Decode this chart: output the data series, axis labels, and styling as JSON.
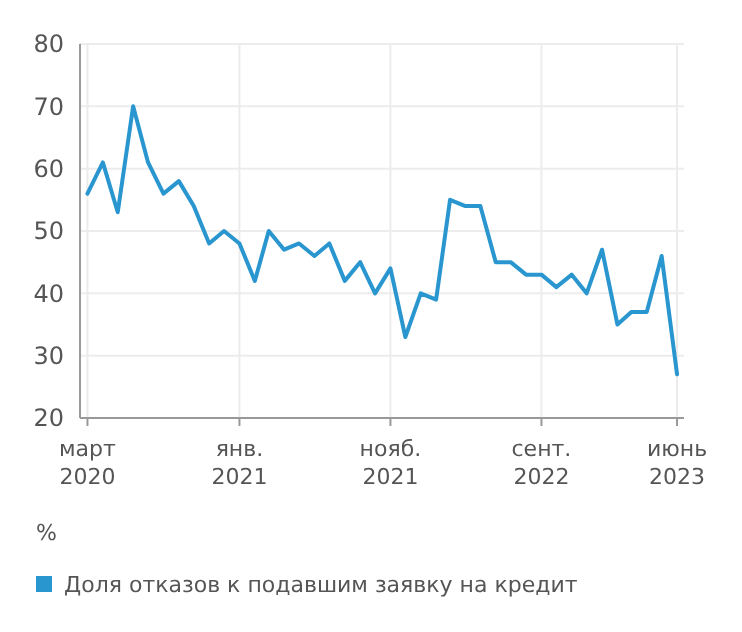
{
  "chart_data": {
    "type": "line",
    "ylabel": "%",
    "x": [
      "2020-03",
      "2020-04",
      "2020-05",
      "2020-06",
      "2020-07",
      "2020-08",
      "2020-09",
      "2020-10",
      "2020-11",
      "2020-12",
      "2021-01",
      "2021-02",
      "2021-03",
      "2021-04",
      "2021-05",
      "2021-06",
      "2021-07",
      "2021-08",
      "2021-09",
      "2021-10",
      "2021-11",
      "2021-12",
      "2022-01",
      "2022-02",
      "2022-03",
      "2022-04",
      "2022-05",
      "2022-06",
      "2022-07",
      "2022-08",
      "2022-09",
      "2022-10",
      "2022-11",
      "2022-12",
      "2023-01",
      "2023-02",
      "2023-03",
      "2023-04",
      "2023-05",
      "2023-06"
    ],
    "series": [
      {
        "name": "Доля отказов к подавшим заявку на кредит",
        "color": "#2a96cf",
        "values": [
          56,
          61,
          53,
          70,
          61,
          56,
          58,
          54,
          48,
          50,
          48,
          42,
          50,
          47,
          48,
          46,
          48,
          42,
          45,
          40,
          44,
          33,
          40,
          39,
          55,
          54,
          54,
          45,
          45,
          43,
          43,
          41,
          43,
          40,
          47,
          35,
          37,
          37,
          46,
          27
        ]
      }
    ],
    "xlim": [
      "2020-02-15",
      "2023-06-15"
    ],
    "xticks": [
      {
        "value": "2020-03",
        "label": "март\n2020"
      },
      {
        "value": "2021-01",
        "label": "янв.\n2021"
      },
      {
        "value": "2021-11",
        "label": "нояб.\n2021"
      },
      {
        "value": "2022-09",
        "label": "сент.\n2022"
      },
      {
        "value": "2023-06",
        "label": "июнь\n2023"
      }
    ],
    "ylim": [
      20,
      80
    ],
    "yticks": [
      20,
      30,
      40,
      50,
      60,
      70,
      80
    ],
    "grid": true,
    "legend": "bottom",
    "marker": "none",
    "line_style": "solid"
  }
}
